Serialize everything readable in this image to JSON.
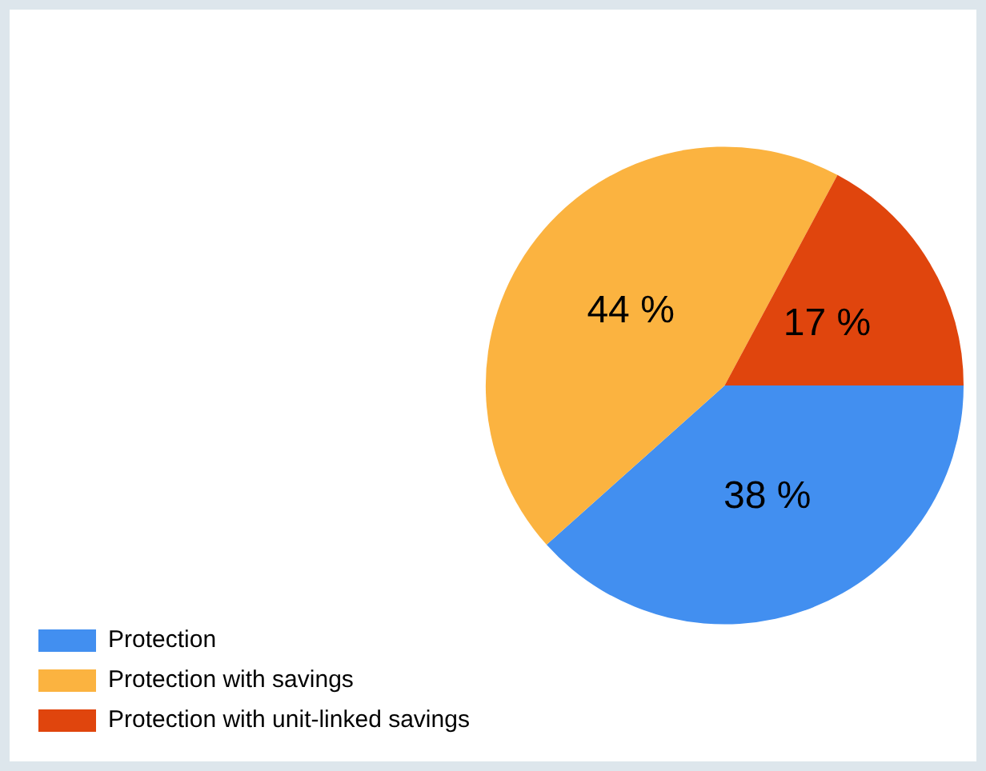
{
  "chart_data": {
    "type": "pie",
    "categories": [
      "Protection",
      "Protection with savings",
      "Protection with unit-linked savings"
    ],
    "values": [
      38,
      44,
      17
    ],
    "colors": [
      "#428ff0",
      "#fbb340",
      "#e0450d"
    ],
    "value_labels": [
      "38 %",
      "44 %",
      "17 %"
    ],
    "legend": "bottom left"
  }
}
